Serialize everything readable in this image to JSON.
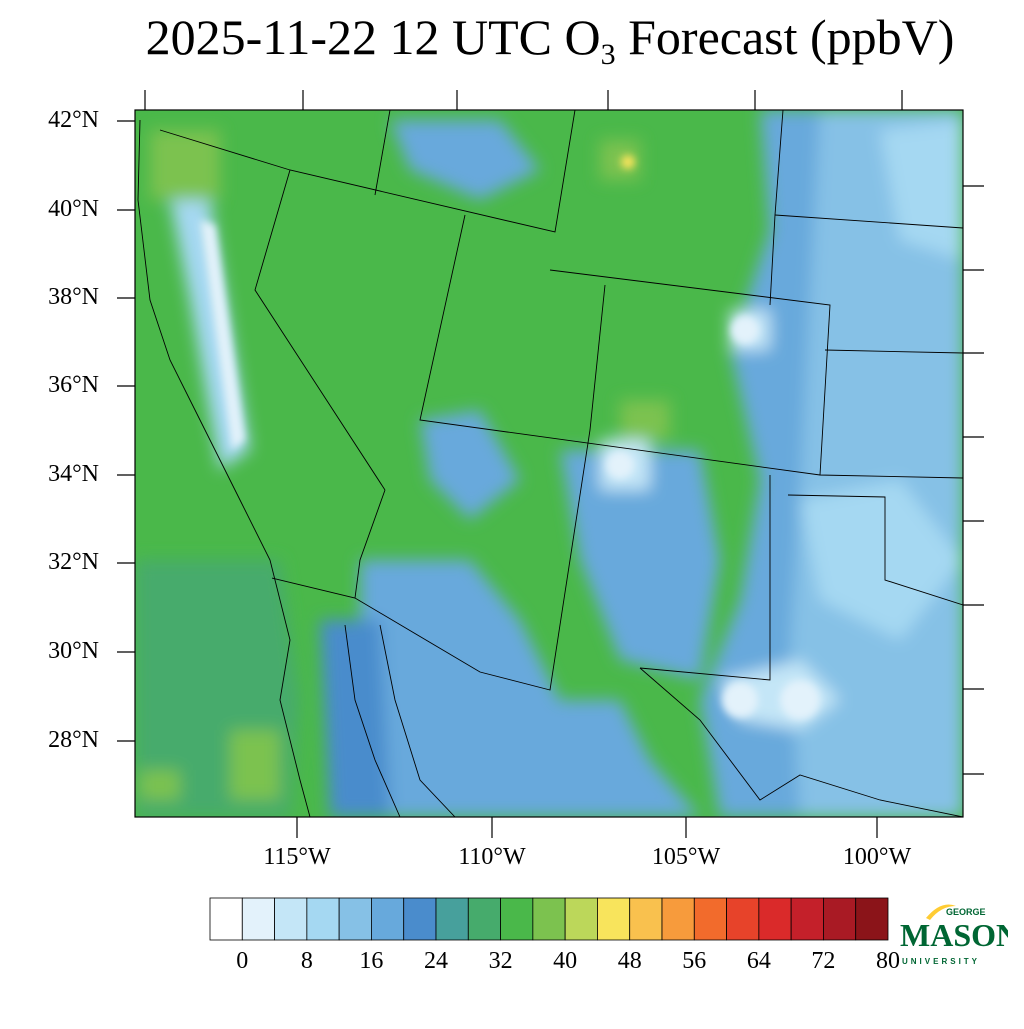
{
  "title": {
    "prefix": "2025-11-22 12 UTC O",
    "subscript": "3",
    "suffix": " Forecast (ppbV)"
  },
  "map": {
    "lat_labels": [
      "42°N",
      "40°N",
      "38°N",
      "36°N",
      "34°N",
      "32°N",
      "30°N",
      "28°N"
    ],
    "lon_labels": [
      "115°W",
      "110°W",
      "105°W",
      "100°W"
    ]
  },
  "colorbar": {
    "colors": [
      "#ffffff",
      "#e3f2fb",
      "#c4e6f7",
      "#a5d8f2",
      "#86c1e6",
      "#67a9dc",
      "#4a8ccc",
      "#47a09c",
      "#46ab6c",
      "#4ab84a",
      "#7cc24f",
      "#bcd75a",
      "#f8e45c",
      "#f9c14e",
      "#f79b3c",
      "#f26b2c",
      "#e7432a",
      "#da2a2a",
      "#c4202a",
      "#a91a24",
      "#8b1419"
    ],
    "tick_labels": [
      "0",
      "8",
      "16",
      "24",
      "32",
      "40",
      "48",
      "56",
      "64",
      "72",
      "80"
    ]
  },
  "logo": {
    "line1": "GEORGE",
    "line2": "MASON",
    "line3": "UNIVERSITY",
    "green": "#006633",
    "gold": "#ffcc33"
  }
}
